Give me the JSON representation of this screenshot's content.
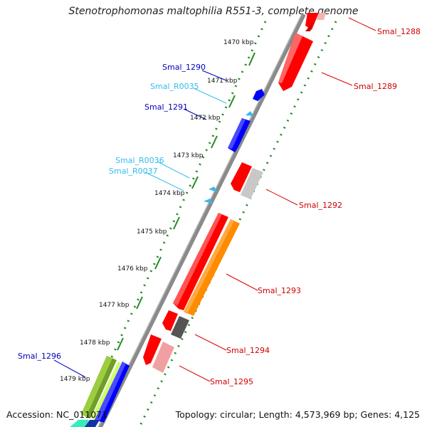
{
  "title": "Stenotrophomonas maltophilia R551-3, complete genome",
  "footer": {
    "accession": "Accession: NC_011071",
    "topology": "Topology: circular; Length: 4,573,969 bp; Genes: 4,125"
  },
  "colors": {
    "forward_cds": "#ff0000",
    "reverse_cds": "#0000ff",
    "trna": "#33bbee",
    "backbone": "#888888",
    "tick_dots": "#228822"
  },
  "ticks": [
    "1470 kbp",
    "1471 kbp",
    "1472 kbp",
    "1473 kbp",
    "1474 kbp",
    "1475 kbp",
    "1476 kbp",
    "1477 kbp",
    "1478 kbp",
    "1479 kbp"
  ],
  "features": [
    {
      "label": "Smal_1288",
      "color": "#d00000"
    },
    {
      "label": "Smal_1289",
      "color": "#d00000"
    },
    {
      "label": "Smal_1290",
      "color": "#0000bb"
    },
    {
      "label": "Smal_R0035",
      "color": "#33bbee"
    },
    {
      "label": "Smal_1291",
      "color": "#0000bb"
    },
    {
      "label": "Smal_R0036",
      "color": "#33bbee"
    },
    {
      "label": "Smal_R0037",
      "color": "#33bbee"
    },
    {
      "label": "Smal_1292",
      "color": "#d00000"
    },
    {
      "label": "Smal_1293",
      "color": "#d00000"
    },
    {
      "label": "Smal_1294",
      "color": "#d00000"
    },
    {
      "label": "Smal_1295",
      "color": "#d00000"
    },
    {
      "label": "Smal_1296",
      "color": "#0000bb"
    }
  ]
}
